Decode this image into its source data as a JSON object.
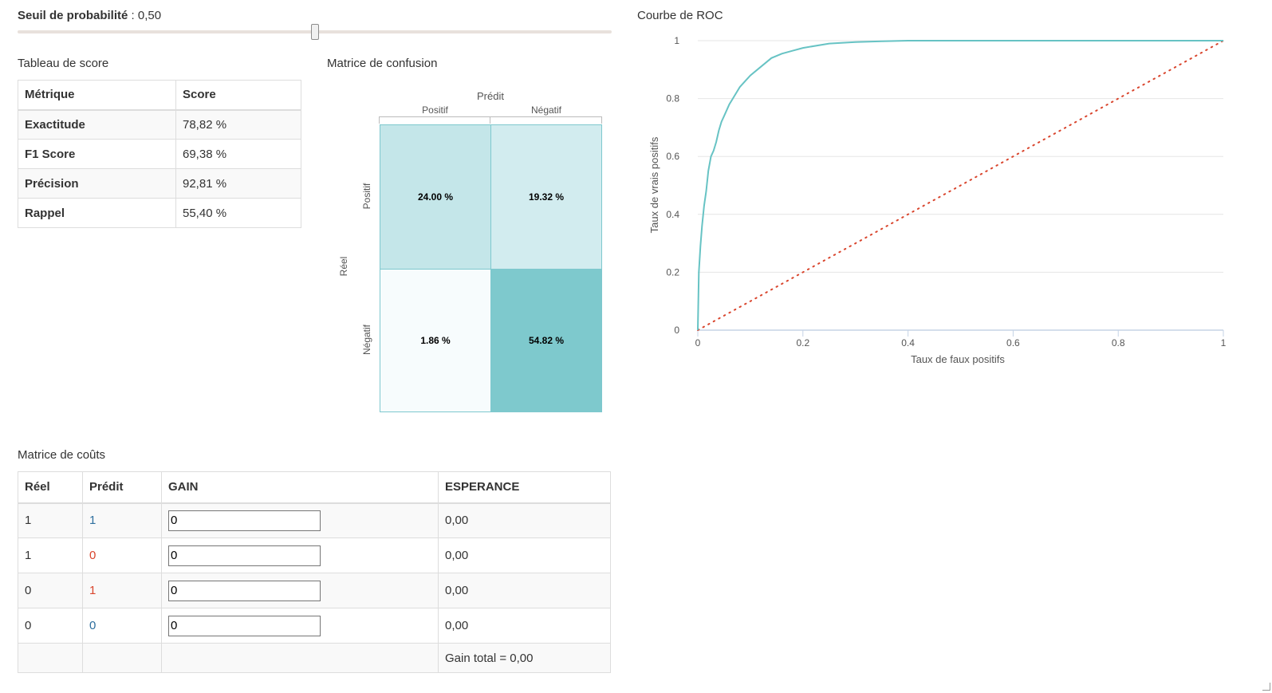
{
  "threshold": {
    "label": "Seuil de probabilité",
    "sep": " : ",
    "value_text": "0,50",
    "value": 0.5
  },
  "score_table": {
    "title": "Tableau de score",
    "headers": [
      "Métrique",
      "Score"
    ],
    "rows": [
      {
        "metric": "Exactitude",
        "score": "78,82 %"
      },
      {
        "metric": "F1 Score",
        "score": "69,38 %"
      },
      {
        "metric": "Précision",
        "score": "92,81 %"
      },
      {
        "metric": "Rappel",
        "score": "55,40 %"
      }
    ]
  },
  "confusion_matrix": {
    "title": "Matrice de confusion",
    "predicted_label": "Prédit",
    "actual_label": "Réel",
    "col_labels": [
      "Positif",
      "Négatif"
    ],
    "row_labels": [
      "Positif",
      "Négatif"
    ],
    "cells": [
      [
        "24.00 %",
        "19.32 %"
      ],
      [
        "1.86 %",
        "54.82 %"
      ]
    ],
    "colors": [
      [
        "#c4e6e9",
        "#d2ecef"
      ],
      [
        "#f7fcfd",
        "#7ec9cd"
      ]
    ]
  },
  "roc": {
    "title": "Courbe de ROC",
    "xlabel": "Taux de faux positifs",
    "ylabel": "Taux de vrais positifs",
    "x_ticks": [
      "0",
      "0.2",
      "0.4",
      "0.6",
      "0.8",
      "1"
    ],
    "y_ticks": [
      "0",
      "0.2",
      "0.4",
      "0.6",
      "0.8",
      "1"
    ],
    "curve_color": "#67c3c4",
    "diagonal_color": "#d9452d"
  },
  "chart_data": {
    "type": "line",
    "title": "Courbe de ROC",
    "xlabel": "Taux de faux positifs",
    "ylabel": "Taux de vrais positifs",
    "xlim": [
      0,
      1
    ],
    "ylim": [
      0,
      1
    ],
    "grid": true,
    "series": [
      {
        "x": [
          0,
          0.002,
          0.005,
          0.008,
          0.012,
          0.016,
          0.02,
          0.025,
          0.03,
          0.035,
          0.04,
          0.045,
          0.05,
          0.06,
          0.07,
          0.08,
          0.09,
          0.1,
          0.12,
          0.14,
          0.16,
          0.18,
          0.2,
          0.25,
          0.3,
          0.35,
          0.4,
          0.5,
          0.6,
          0.7,
          0.8,
          0.9,
          1
        ],
        "y": [
          0,
          0.2,
          0.29,
          0.36,
          0.43,
          0.48,
          0.55,
          0.6,
          0.62,
          0.65,
          0.69,
          0.72,
          0.74,
          0.78,
          0.81,
          0.84,
          0.86,
          0.88,
          0.91,
          0.94,
          0.955,
          0.965,
          0.975,
          0.99,
          0.995,
          0.998,
          1,
          1,
          1,
          1,
          1,
          1,
          1
        ]
      },
      {
        "x": [
          0,
          1
        ],
        "y": [
          0,
          1
        ]
      }
    ]
  },
  "cost_table": {
    "title": "Matrice de coûts",
    "headers": [
      "Réel",
      "Prédit",
      "GAIN",
      "ESPERANCE"
    ],
    "rows": [
      {
        "reel": "1",
        "predit": "1",
        "gain": "0",
        "esperance": "0,00"
      },
      {
        "reel": "1",
        "predit": "0",
        "gain": "0",
        "esperance": "0,00"
      },
      {
        "reel": "0",
        "predit": "1",
        "gain": "0",
        "esperance": "0,00"
      },
      {
        "reel": "0",
        "predit": "0",
        "gain": "0",
        "esperance": "0,00"
      }
    ],
    "total": "Gain total = 0,00"
  }
}
